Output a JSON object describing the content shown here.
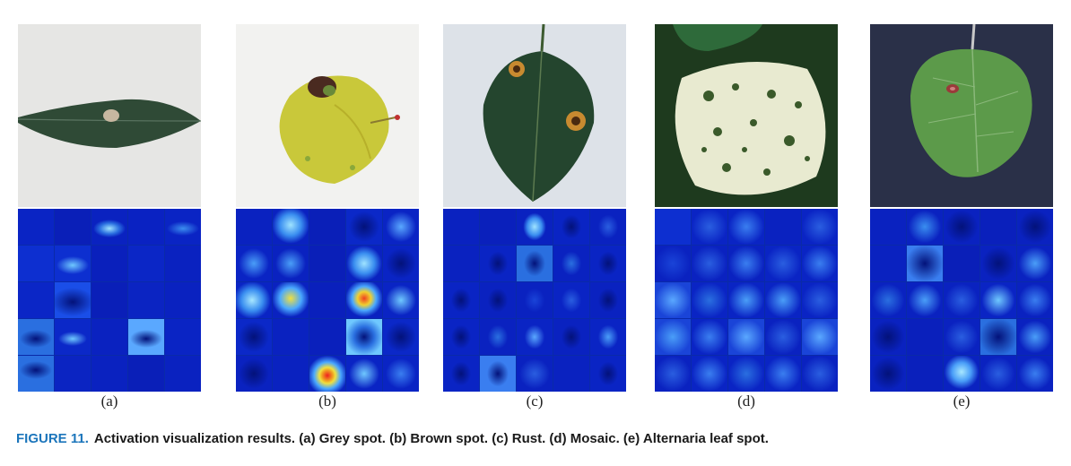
{
  "figure": {
    "label": "FIGURE 11.",
    "caption": "Activation visualization results. (a) Grey spot. (b) Brown spot. (c) Rust. (d) Mosaic. (e) Alternaria leaf spot."
  },
  "panels": [
    {
      "label": "(a)"
    },
    {
      "label": "(b)"
    },
    {
      "label": "(c)"
    },
    {
      "label": "(d)"
    },
    {
      "label": "(e)"
    }
  ]
}
